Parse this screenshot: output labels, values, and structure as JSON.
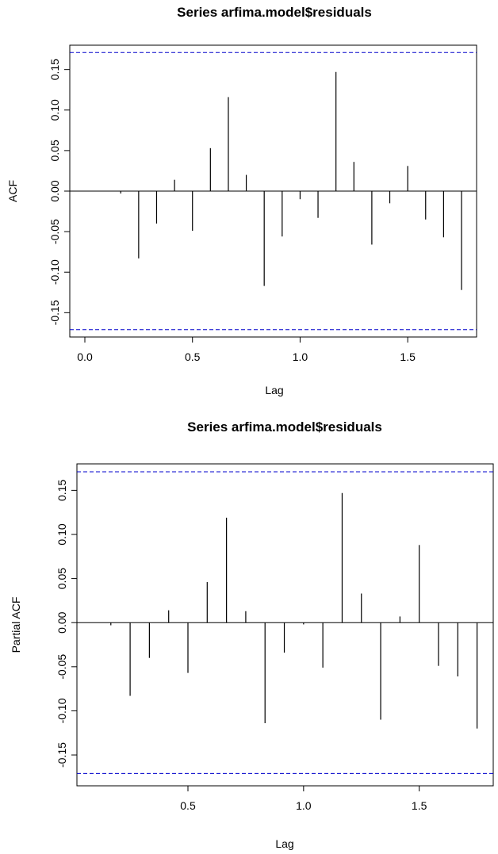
{
  "chart_data": [
    {
      "type": "bar",
      "title": "Series  arfima.model$residuals",
      "xlabel": "Lag",
      "ylabel": "ACF",
      "xlim": [
        -0.07,
        1.82
      ],
      "ylim": [
        -0.18,
        0.18
      ],
      "xticks": [
        0.0,
        0.5,
        1.0,
        1.5
      ],
      "xtick_labels": [
        "0.0",
        "0.5",
        "1.0",
        "1.5"
      ],
      "yticks": [
        -0.15,
        -0.1,
        -0.05,
        0.0,
        0.05,
        0.1,
        0.15
      ],
      "ytick_labels": [
        "-0.15",
        "-0.10",
        "-0.05",
        "0.00",
        "0.05",
        "0.10",
        "0.15"
      ],
      "confidence_bound": 0.171,
      "series": [
        {
          "x": [
            0.0833,
            0.1667,
            0.25,
            0.3333,
            0.4167,
            0.5,
            0.5833,
            0.6667,
            0.75,
            0.8333,
            0.9167,
            1.0,
            1.0833,
            1.1667,
            1.25,
            1.3333,
            1.4167,
            1.5,
            1.5833,
            1.6667,
            1.75
          ],
          "values": [
            0.0,
            -0.003,
            -0.083,
            -0.04,
            0.014,
            -0.049,
            0.053,
            0.116,
            0.02,
            -0.117,
            -0.056,
            -0.01,
            -0.033,
            0.147,
            0.036,
            -0.066,
            -0.015,
            0.031,
            -0.035,
            -0.057,
            -0.122
          ]
        }
      ]
    },
    {
      "type": "bar",
      "title": "Series  arfima.model$residuals",
      "xlabel": "Lag",
      "ylabel": "Partial ACF",
      "xlim": [
        0.02,
        1.82
      ],
      "ylim": [
        -0.185,
        0.18
      ],
      "xticks": [
        0.5,
        1.0,
        1.5
      ],
      "xtick_labels": [
        "0.5",
        "1.0",
        "1.5"
      ],
      "yticks": [
        -0.15,
        -0.1,
        -0.05,
        0.0,
        0.05,
        0.1,
        0.15
      ],
      "ytick_labels": [
        "-0.15",
        "-0.10",
        "-0.05",
        "0.00",
        "0.05",
        "0.10",
        "0.15"
      ],
      "confidence_bound": 0.171,
      "series": [
        {
          "x": [
            0.1667,
            0.25,
            0.3333,
            0.4167,
            0.5,
            0.5833,
            0.6667,
            0.75,
            0.8333,
            0.9167,
            1.0,
            1.0833,
            1.1667,
            1.25,
            1.3333,
            1.4167,
            1.5,
            1.5833,
            1.6667,
            1.75
          ],
          "values": [
            -0.003,
            -0.083,
            -0.04,
            0.014,
            -0.057,
            0.046,
            0.119,
            0.013,
            -0.114,
            -0.034,
            -0.002,
            -0.051,
            0.147,
            0.033,
            -0.11,
            0.007,
            0.088,
            -0.049,
            -0.061,
            -0.12
          ]
        }
      ]
    }
  ]
}
